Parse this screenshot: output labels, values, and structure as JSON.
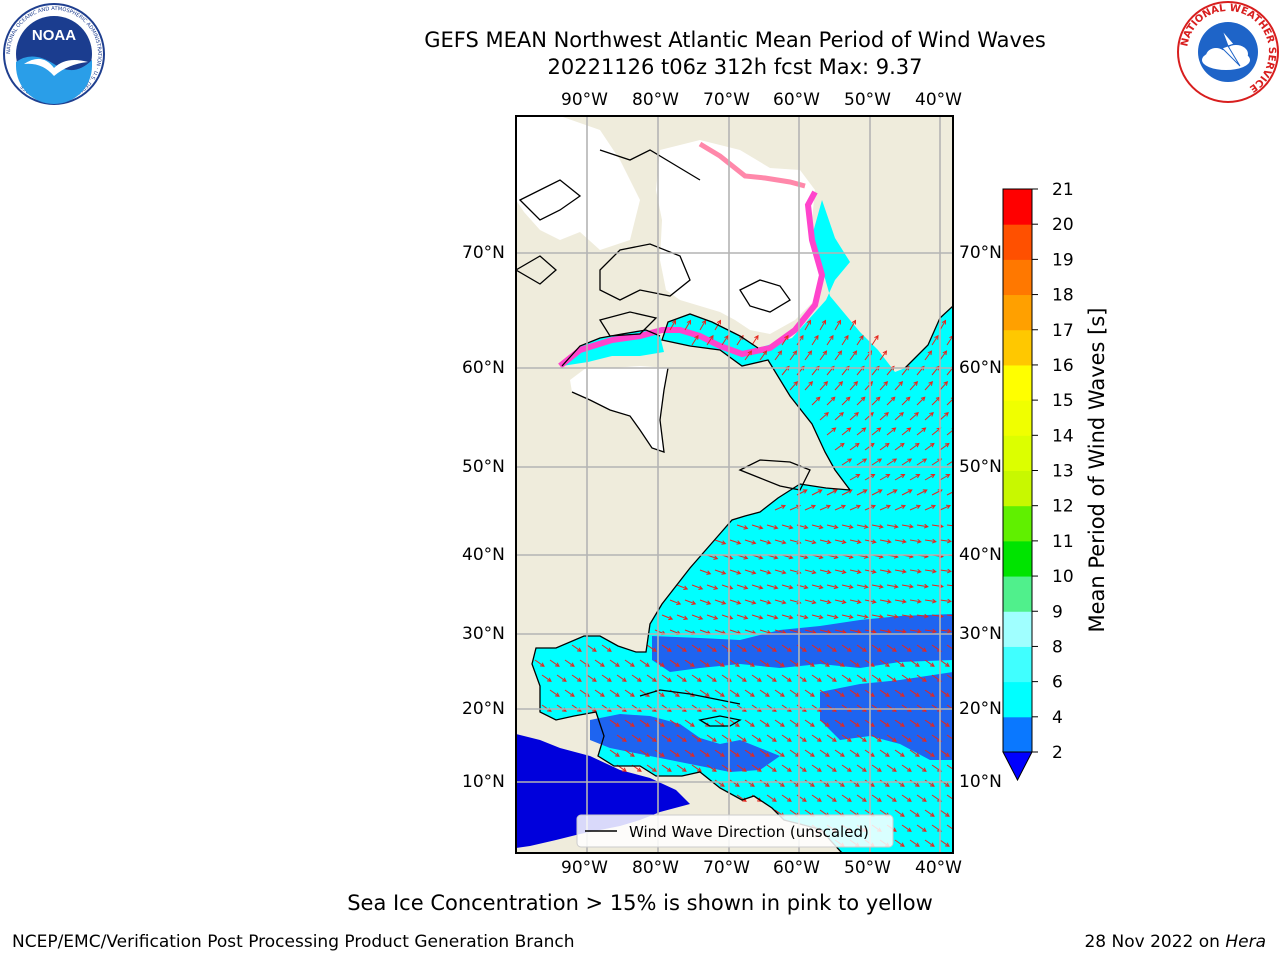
{
  "header": {
    "title_line1": "GEFS MEAN Northwest Atlantic Mean Period of Wind Waves",
    "title_line2": "20221126 t06z 312h fcst   Max: 9.37",
    "noaa_logo_text": "NOAA",
    "noaa_ring_text": "NATIONAL OCEANIC AND ATMOSPHERIC ADMINISTRATION · U.S. DEPARTMENT OF COMMERCE",
    "nws_ring_text": "NATIONAL WEATHER SERVICE"
  },
  "map": {
    "lon_labels": [
      "90°W",
      "80°W",
      "70°W",
      "60°W",
      "50°W",
      "40°W"
    ],
    "lat_labels_left": [
      "70°N",
      "60°N",
      "50°N",
      "40°N",
      "30°N",
      "20°N",
      "10°N"
    ],
    "lat_labels_right": [
      "70°N",
      "60°N",
      "50°N",
      "40°N",
      "30°N",
      "20°N",
      "10°N"
    ],
    "legend_label": "Wind Wave Direction (unscaled)",
    "colors": {
      "land": "#efecdc",
      "ocean_main": "#00ffff",
      "ocean_low": "#1e64f0",
      "ocean_deep": "#0000dc",
      "ice": "#ffffff",
      "arrow": "#e8251c",
      "grid": "#b4b4b4"
    }
  },
  "colorbar": {
    "label": "Mean Period of Wind Waves [s]",
    "tick_labels": [
      "2",
      "4",
      "6",
      "8",
      "9",
      "10",
      "11",
      "12",
      "13",
      "14",
      "15",
      "16",
      "17",
      "18",
      "19",
      "20",
      "21"
    ],
    "bins": [
      {
        "lo": 2,
        "hi": 4,
        "color": "#0a78ff"
      },
      {
        "lo": 4,
        "hi": 6,
        "color": "#00ffff"
      },
      {
        "lo": 6,
        "hi": 8,
        "color": "#40ffff"
      },
      {
        "lo": 8,
        "hi": 9,
        "color": "#a0ffff"
      },
      {
        "lo": 9,
        "hi": 10,
        "color": "#50f08c"
      },
      {
        "lo": 10,
        "hi": 11,
        "color": "#00e400"
      },
      {
        "lo": 11,
        "hi": 12,
        "color": "#60f000"
      },
      {
        "lo": 12,
        "hi": 13,
        "color": "#c8f800"
      },
      {
        "lo": 13,
        "hi": 14,
        "color": "#dcff00"
      },
      {
        "lo": 14,
        "hi": 15,
        "color": "#f0ff00"
      },
      {
        "lo": 15,
        "hi": 16,
        "color": "#ffff00"
      },
      {
        "lo": 16,
        "hi": 17,
        "color": "#ffc800"
      },
      {
        "lo": 17,
        "hi": 18,
        "color": "#ffa000"
      },
      {
        "lo": 18,
        "hi": 19,
        "color": "#ff7800"
      },
      {
        "lo": 19,
        "hi": 20,
        "color": "#ff5000"
      },
      {
        "lo": 20,
        "hi": 21,
        "color": "#ff0000"
      }
    ],
    "under_color": "#0000ff"
  },
  "notes": {
    "ice_note": "Sea Ice Concentration > 15% is shown in pink to yellow"
  },
  "footer": {
    "left": "NCEP/EMC/Verification Post Processing Product Generation Branch",
    "date": "28 Nov 2022 on ",
    "machine": "Hera"
  }
}
